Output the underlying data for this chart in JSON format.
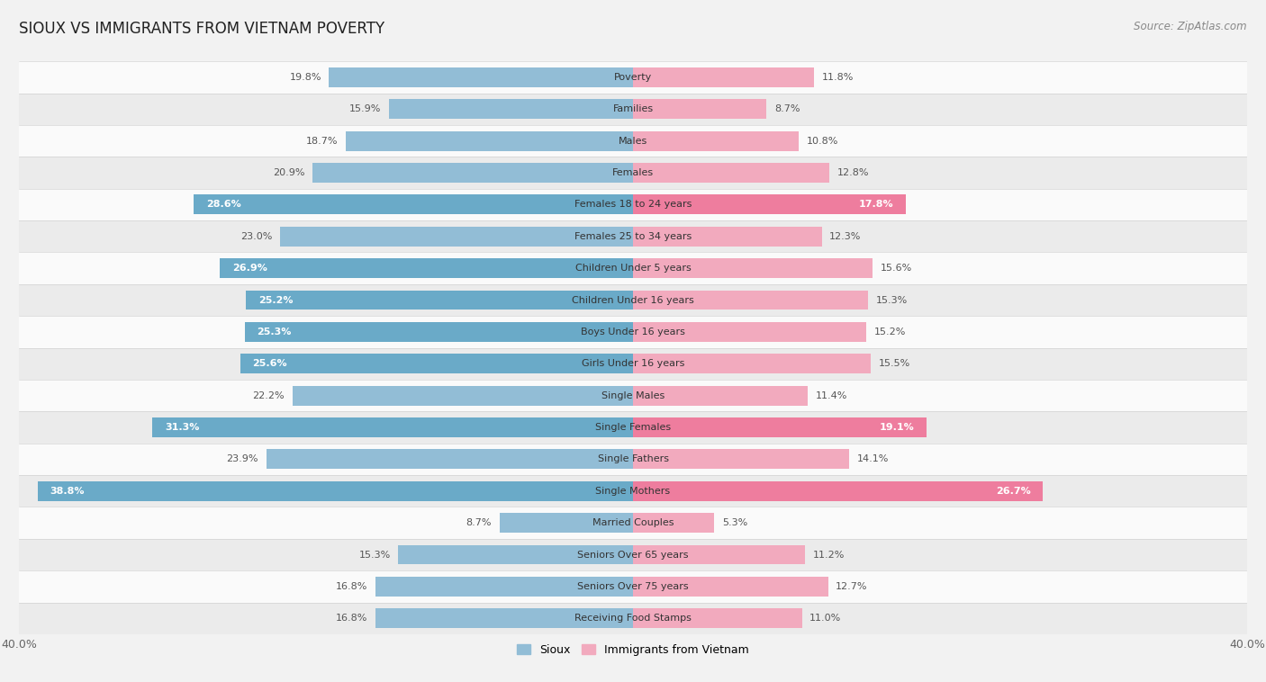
{
  "title": "SIOUX VS IMMIGRANTS FROM VIETNAM POVERTY",
  "source": "Source: ZipAtlas.com",
  "categories": [
    "Poverty",
    "Families",
    "Males",
    "Females",
    "Females 18 to 24 years",
    "Females 25 to 34 years",
    "Children Under 5 years",
    "Children Under 16 years",
    "Boys Under 16 years",
    "Girls Under 16 years",
    "Single Males",
    "Single Females",
    "Single Fathers",
    "Single Mothers",
    "Married Couples",
    "Seniors Over 65 years",
    "Seniors Over 75 years",
    "Receiving Food Stamps"
  ],
  "sioux_values": [
    19.8,
    15.9,
    18.7,
    20.9,
    28.6,
    23.0,
    26.9,
    25.2,
    25.3,
    25.6,
    22.2,
    31.3,
    23.9,
    38.8,
    8.7,
    15.3,
    16.8,
    16.8
  ],
  "vietnam_values": [
    11.8,
    8.7,
    10.8,
    12.8,
    17.8,
    12.3,
    15.6,
    15.3,
    15.2,
    15.5,
    11.4,
    19.1,
    14.1,
    26.7,
    5.3,
    11.2,
    12.7,
    11.0
  ],
  "sioux_color_normal": "#92BDD6",
  "sioux_color_highlight": "#6AAAC8",
  "vietnam_color_normal": "#F2AABE",
  "vietnam_color_highlight": "#EE7D9E",
  "max_value": 40.0,
  "bar_height": 0.62,
  "bg_color": "#f2f2f2",
  "row_color_even": "#fafafa",
  "row_color_odd": "#ebebeb",
  "legend_sioux": "Sioux",
  "legend_vietnam": "Immigrants from Vietnam",
  "highlight_threshold_sioux": 24.0,
  "highlight_threshold_vietnam": 17.0
}
